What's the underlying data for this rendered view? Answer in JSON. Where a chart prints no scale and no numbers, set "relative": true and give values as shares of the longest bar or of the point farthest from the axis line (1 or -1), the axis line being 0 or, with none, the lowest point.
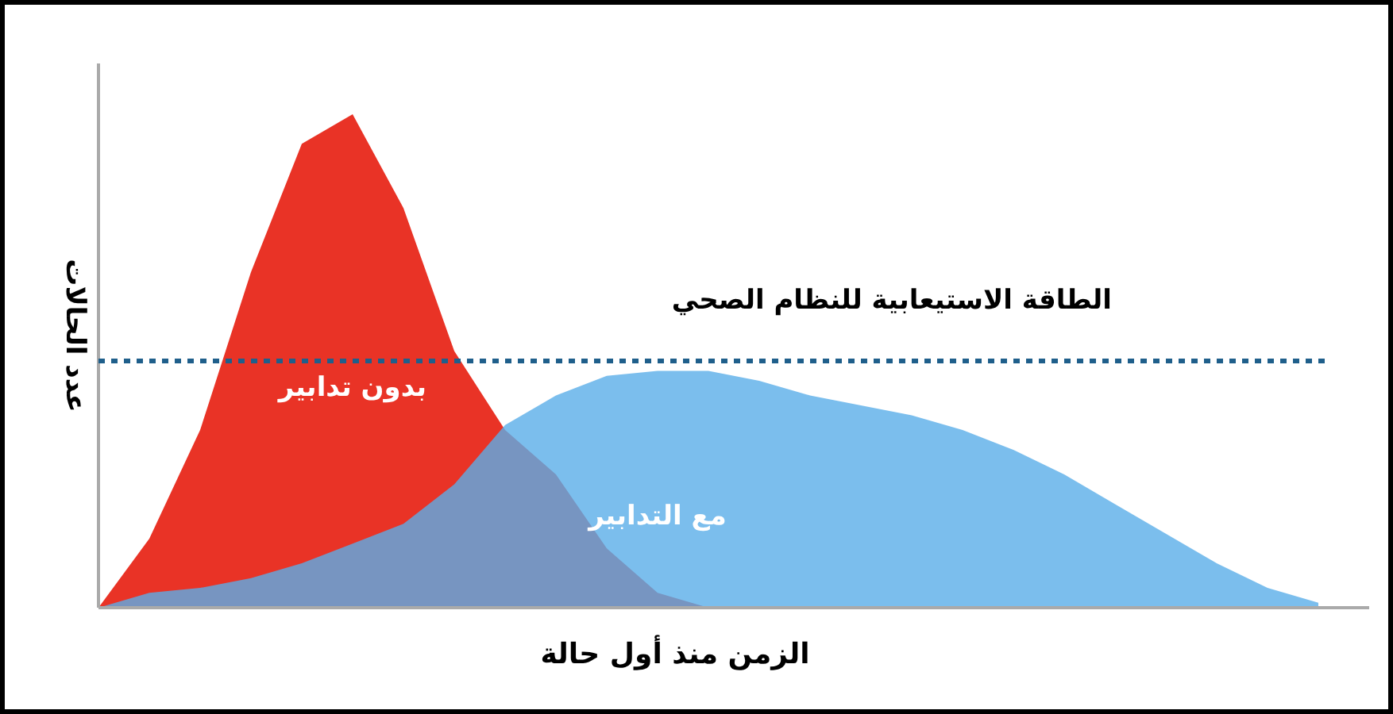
{
  "chart_data": {
    "type": "area",
    "relative": true,
    "xlabel": "الزمن منذ أول حالة",
    "ylabel": "عدد الحالات",
    "categories": [
      null,
      null,
      null,
      null,
      null,
      null,
      null,
      null,
      null,
      null,
      null,
      null,
      null,
      null,
      null,
      null,
      null,
      null,
      null,
      null,
      null,
      null,
      null,
      null,
      null
    ],
    "series": [
      {
        "name": "بدون تدابير",
        "color": "#e8281a",
        "values": [
          0,
          0.14,
          0.36,
          0.68,
          0.94,
          1.0,
          0.81,
          0.52,
          0.36,
          0.27,
          0.12,
          0.03,
          0,
          0,
          0,
          0,
          0,
          0,
          0,
          0,
          0,
          0,
          0,
          0,
          0
        ]
      },
      {
        "name": "مع التدابير",
        "color": "#5aaee8",
        "values": [
          0,
          0.03,
          0.04,
          0.06,
          0.09,
          0.13,
          0.17,
          0.25,
          0.37,
          0.43,
          0.47,
          0.48,
          0.48,
          0.46,
          0.43,
          0.41,
          0.39,
          0.36,
          0.32,
          0.27,
          0.21,
          0.15,
          0.09,
          0.04,
          0.01
        ]
      }
    ],
    "ref_lines": [
      {
        "axis": "y",
        "value": 0.5,
        "label": "الطاقة الاستيعابية للنظام الصحي",
        "color": "#1f5f8b",
        "line_style": "dotted"
      }
    ],
    "legend": false
  }
}
